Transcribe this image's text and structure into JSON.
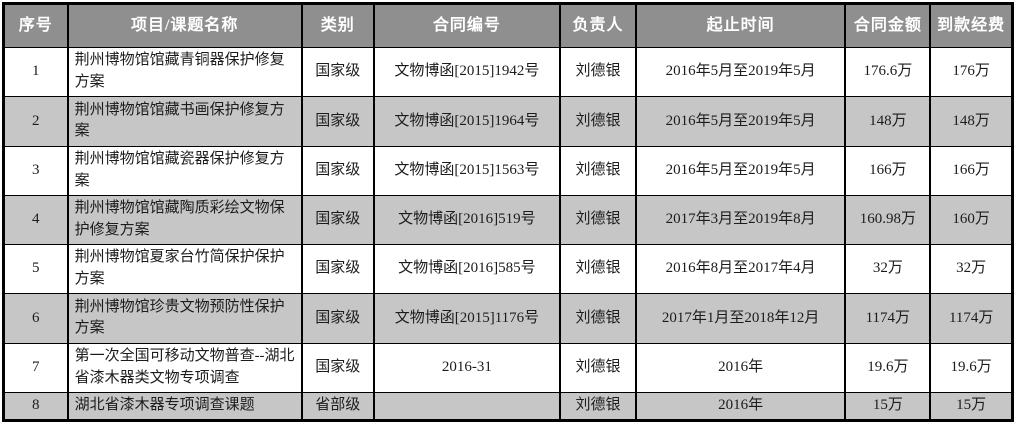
{
  "colors": {
    "header_bg": "#8f8f8f",
    "header_text": "#ffffff",
    "row_alt_bg": "#c6c6c6",
    "row_bg": "#ffffff",
    "border": "#000000",
    "body_text": "#1c1c1c"
  },
  "chart_data": {
    "type": "table",
    "columns": [
      "序号",
      "项目/课题名称",
      "类别",
      "合同编号",
      "负责人",
      "起止时间",
      "合同金额",
      "到款经费"
    ],
    "rows": [
      [
        "1",
        "荆州博物馆馆藏青铜器保护修复方案",
        "国家级",
        "文物博函[2015]1942号",
        "刘德银",
        "2016年5月至2019年5月",
        "176.6万",
        "176万"
      ],
      [
        "2",
        "荆州博物馆馆藏书画保护修复方案",
        "国家级",
        "文物博函[2015]1964号",
        "刘德银",
        "2016年5月至2019年5月",
        "148万",
        "148万"
      ],
      [
        "3",
        "荆州博物馆馆藏瓷器保护修复方案",
        "国家级",
        "文物博函[2015]1563号",
        "刘德银",
        "2016年5月至2019年5月",
        "166万",
        "166万"
      ],
      [
        "4",
        "荆州博物馆馆藏陶质彩绘文物保护修复方案",
        "国家级",
        "文物博函[2016]519号",
        "刘德银",
        "2017年3月至2019年8月",
        "160.98万",
        "160万"
      ],
      [
        "5",
        "荆州博物馆夏家台竹简保护保护方案",
        "国家级",
        "文物博函[2016]585号",
        "刘德银",
        "2016年8月至2017年4月",
        "32万",
        "32万"
      ],
      [
        "6",
        "荆州博物馆珍贵文物预防性保护方案",
        "国家级",
        "文物博函[2015]1176号",
        "刘德银",
        "2017年1月至2018年12月",
        "1174万",
        "1174万"
      ],
      [
        "7",
        "第一次全国可移动文物普查--湖北省漆木器类文物专项调查",
        "国家级",
        "2016-31",
        "刘德银",
        "2016年",
        "19.6万",
        "19.6万"
      ],
      [
        "8",
        "湖北省漆木器专项调查课题",
        "省部级",
        "",
        "刘德银",
        "2016年",
        "15万",
        "15万"
      ]
    ]
  }
}
